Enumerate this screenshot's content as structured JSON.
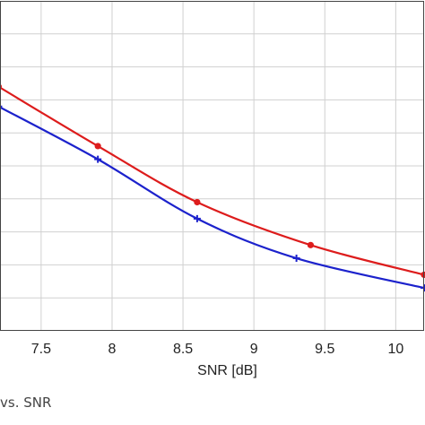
{
  "caption": "vs. SNR",
  "chart_data": {
    "type": "line",
    "xlabel": "SNR [dB]",
    "ylabel": "",
    "title": "",
    "xlim": [
      7.21,
      10.2
    ],
    "xticks": [
      7.5,
      8,
      8.5,
      9,
      9.5,
      10
    ],
    "x_tick_labels": [
      "7.5",
      "8",
      "8.5",
      "9",
      "9.5",
      "10"
    ],
    "grid": true,
    "series": [
      {
        "color": "#dd1c1c",
        "marker": "circle",
        "x": [
          7.2,
          7.9,
          8.6,
          9.4,
          10.2
        ],
        "y": [
          0.74,
          0.56,
          0.39,
          0.26,
          0.17
        ]
      },
      {
        "color": "#1c22cc",
        "marker": "plus",
        "x": [
          7.2,
          7.9,
          8.6,
          9.3,
          10.2
        ],
        "y": [
          0.68,
          0.52,
          0.34,
          0.22,
          0.13
        ]
      }
    ]
  }
}
